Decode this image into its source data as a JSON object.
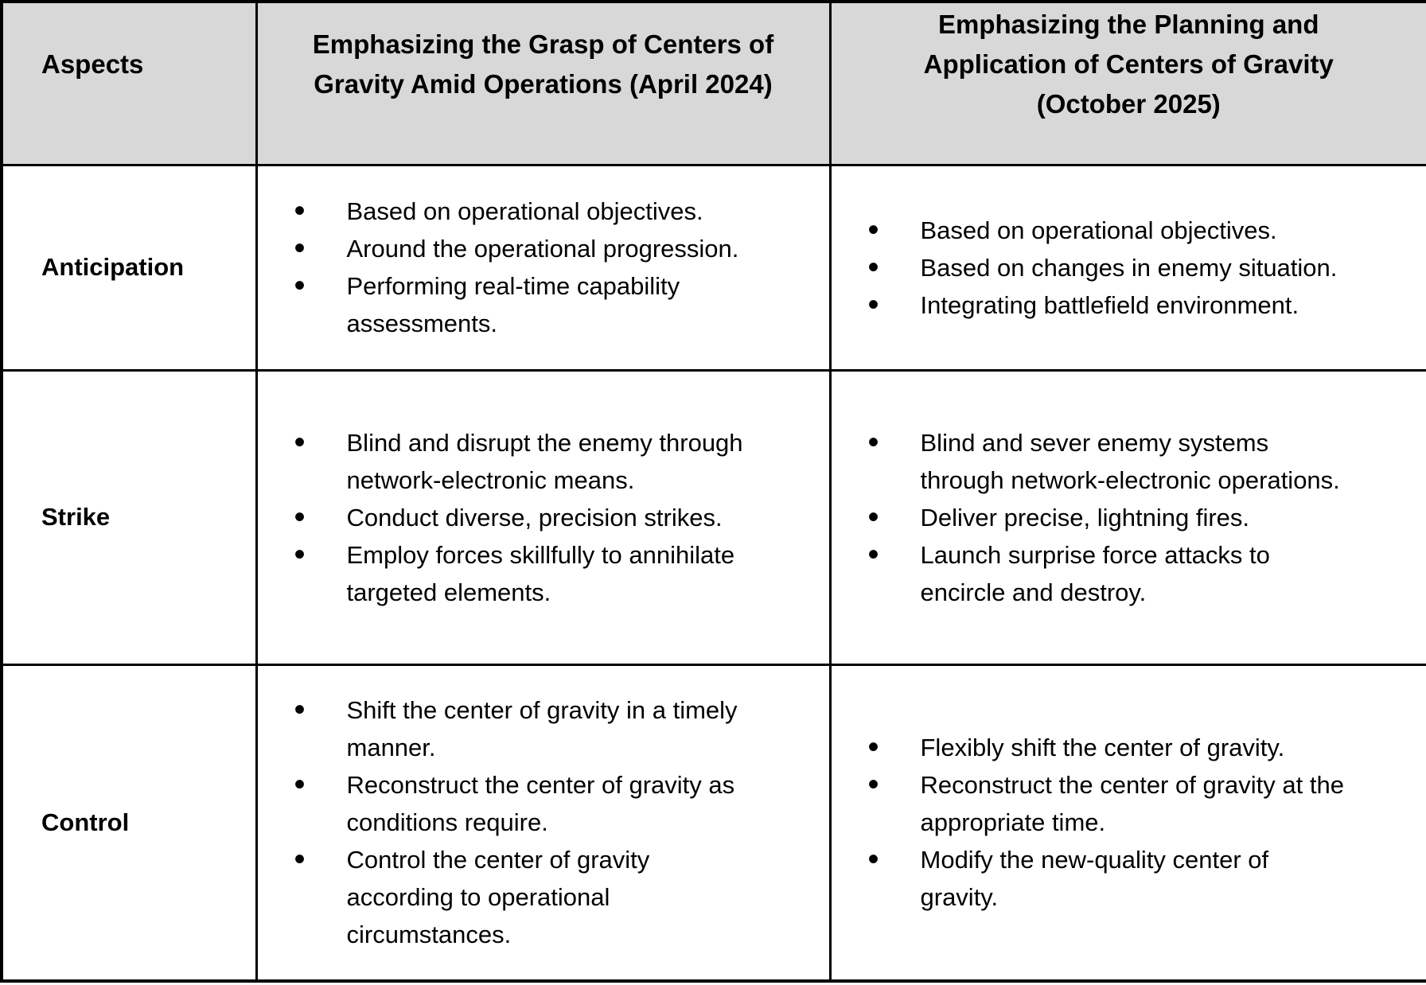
{
  "colors": {
    "header_bg": "#d8d8d8",
    "border": "#000000",
    "background": "#ffffff",
    "text": "#000000"
  },
  "icons": {
    "bullet": "•"
  },
  "table": {
    "columns": {
      "aspects": "Aspects",
      "grasp_2024": "Emphasizing the Grasp of Centers of\nGravity Amid Operations (April 2024)",
      "planning_2025": "Emphasizing the Planning and\nApplication of Centers of Gravity\n(October 2025)"
    },
    "rows": [
      {
        "aspect": "Anticipation",
        "grasp_2024": [
          "Based on operational objectives.",
          "Around the operational progression.",
          "Performing real-time capability\nassessments."
        ],
        "planning_2025": [
          "Based on operational objectives.",
          "Based on changes in enemy situation.",
          "Integrating battlefield environment."
        ]
      },
      {
        "aspect": "Strike",
        "grasp_2024": [
          "Blind and disrupt the enemy through\nnetwork-electronic means.",
          "Conduct diverse, precision strikes.",
          "Employ forces skillfully to annihilate\ntargeted elements."
        ],
        "planning_2025": [
          "Blind and sever enemy systems\nthrough network-electronic operations.",
          "Deliver precise, lightning fires.",
          "Launch surprise force attacks to\nencircle and destroy."
        ]
      },
      {
        "aspect": "Control",
        "grasp_2024": [
          "Shift the center of gravity in a timely\nmanner.",
          "Reconstruct the center of gravity as\nconditions require.",
          "Control the center of gravity\naccording to operational\ncircumstances."
        ],
        "planning_2025": [
          "Flexibly shift the center of gravity.",
          "Reconstruct the center of gravity at the\nappropriate time.",
          "Modify the new-quality center of\ngravity."
        ]
      }
    ]
  }
}
